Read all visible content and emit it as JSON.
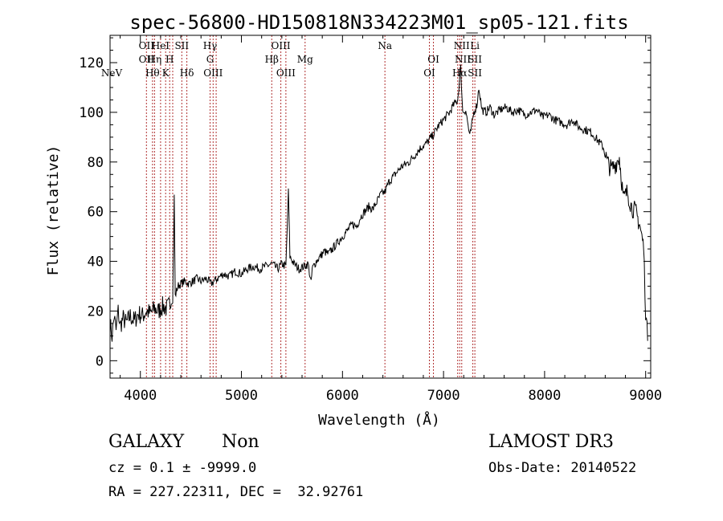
{
  "chart_data": {
    "type": "line",
    "title": "spec-56800-HD150818N334223M01_sp05-121.fits",
    "xlabel": "Wavelength (Å)",
    "ylabel": "Flux (relative)",
    "xlim": [
      3700,
      9050
    ],
    "ylim": [
      -7,
      131
    ],
    "x_ticks": [
      4000,
      5000,
      6000,
      7000,
      8000,
      9000
    ],
    "y_ticks": [
      0,
      20,
      40,
      60,
      80,
      100,
      120
    ],
    "grid": false,
    "legend": "none",
    "line_color": "#000000",
    "marker_color": "#b03030",
    "series": [
      {
        "points": [
          [
            3700,
            15
          ],
          [
            3720,
            10
          ],
          [
            3740,
            18
          ],
          [
            3760,
            12
          ],
          [
            3780,
            20
          ],
          [
            3800,
            14
          ],
          [
            3830,
            17
          ],
          [
            3860,
            15
          ],
          [
            3900,
            18
          ],
          [
            3940,
            16
          ],
          [
            3980,
            19
          ],
          [
            4020,
            18
          ],
          [
            4060,
            20
          ],
          [
            4100,
            19
          ],
          [
            4140,
            21
          ],
          [
            4180,
            20
          ],
          [
            4220,
            22
          ],
          [
            4260,
            21
          ],
          [
            4300,
            23
          ],
          [
            4320,
            25
          ],
          [
            4335,
            66
          ],
          [
            4345,
            26
          ],
          [
            4370,
            30
          ],
          [
            4400,
            31
          ],
          [
            4440,
            32
          ],
          [
            4480,
            31
          ],
          [
            4520,
            32
          ],
          [
            4560,
            33
          ],
          [
            4600,
            32
          ],
          [
            4650,
            33
          ],
          [
            4700,
            31
          ],
          [
            4760,
            33
          ],
          [
            4820,
            35
          ],
          [
            4880,
            34
          ],
          [
            4940,
            36
          ],
          [
            5000,
            35
          ],
          [
            5060,
            37
          ],
          [
            5120,
            38
          ],
          [
            5180,
            37
          ],
          [
            5240,
            38
          ],
          [
            5300,
            39
          ],
          [
            5360,
            37
          ],
          [
            5400,
            39
          ],
          [
            5440,
            38
          ],
          [
            5465,
            68
          ],
          [
            5480,
            42
          ],
          [
            5520,
            39
          ],
          [
            5570,
            37
          ],
          [
            5620,
            38
          ],
          [
            5660,
            39
          ],
          [
            5690,
            31
          ],
          [
            5700,
            37
          ],
          [
            5740,
            40
          ],
          [
            5780,
            42
          ],
          [
            5820,
            44
          ],
          [
            5860,
            43
          ],
          [
            5900,
            45
          ],
          [
            5940,
            47
          ],
          [
            5980,
            49
          ],
          [
            6020,
            51
          ],
          [
            6060,
            53
          ],
          [
            6100,
            55
          ],
          [
            6140,
            54
          ],
          [
            6180,
            58
          ],
          [
            6220,
            60
          ],
          [
            6260,
            62
          ],
          [
            6300,
            61
          ],
          [
            6340,
            64
          ],
          [
            6380,
            67
          ],
          [
            6420,
            68
          ],
          [
            6460,
            72
          ],
          [
            6500,
            74
          ],
          [
            6540,
            76
          ],
          [
            6580,
            78
          ],
          [
            6620,
            79
          ],
          [
            6660,
            80
          ],
          [
            6700,
            82
          ],
          [
            6740,
            84
          ],
          [
            6780,
            86
          ],
          [
            6820,
            87
          ],
          [
            6860,
            89
          ],
          [
            6900,
            91
          ],
          [
            6940,
            94
          ],
          [
            6980,
            96
          ],
          [
            7020,
            98
          ],
          [
            7060,
            100
          ],
          [
            7100,
            103
          ],
          [
            7140,
            105
          ],
          [
            7170,
            118
          ],
          [
            7190,
            100
          ],
          [
            7220,
            101
          ],
          [
            7260,
            90
          ],
          [
            7300,
            100
          ],
          [
            7330,
            103
          ],
          [
            7350,
            110
          ],
          [
            7380,
            101
          ],
          [
            7420,
            100
          ],
          [
            7460,
            102
          ],
          [
            7500,
            99
          ],
          [
            7560,
            101
          ],
          [
            7620,
            102
          ],
          [
            7680,
            100
          ],
          [
            7740,
            101
          ],
          [
            7800,
            99
          ],
          [
            7860,
            100
          ],
          [
            7920,
            101
          ],
          [
            7980,
            98
          ],
          [
            8040,
            99
          ],
          [
            8100,
            97
          ],
          [
            8160,
            96
          ],
          [
            8220,
            95
          ],
          [
            8280,
            97
          ],
          [
            8340,
            94
          ],
          [
            8400,
            93
          ],
          [
            8460,
            92
          ],
          [
            8520,
            89
          ],
          [
            8580,
            86
          ],
          [
            8620,
            80
          ],
          [
            8660,
            77
          ],
          [
            8700,
            79
          ],
          [
            8740,
            82
          ],
          [
            8780,
            65
          ],
          [
            8820,
            68
          ],
          [
            8860,
            62
          ],
          [
            8900,
            60
          ],
          [
            8940,
            55
          ],
          [
            8980,
            46
          ],
          [
            9000,
            20
          ],
          [
            9020,
            8
          ]
        ]
      }
    ],
    "line_markers": [
      {
        "label": "NeV",
        "wavelength": 3700,
        "row": 3
      },
      {
        "label": "OII",
        "wavelength": 4060,
        "row": 0
      },
      {
        "label": "OII",
        "wavelength": 4060,
        "row": 1
      },
      {
        "label": "Hθ",
        "wavelength": 4120,
        "row": 2
      },
      {
        "label": "Hη",
        "wavelength": 4140,
        "row": 1
      },
      {
        "label": "HeI",
        "wavelength": 4200,
        "row": 0
      },
      {
        "label": "K",
        "wavelength": 4250,
        "row": 2
      },
      {
        "label": "H",
        "wavelength": 4290,
        "row": 1
      },
      {
        "label": "SII",
        "wavelength": 4410,
        "row": 0
      },
      {
        "label": "Hδ",
        "wavelength": 4460,
        "row": 2
      },
      {
        "label": "Hγ",
        "wavelength": 4690,
        "row": 0
      },
      {
        "label": "G",
        "wavelength": 4690,
        "row": 1
      },
      {
        "label": "OIII",
        "wavelength": 4720,
        "row": 2
      },
      {
        "label": "Hβ",
        "wavelength": 5300,
        "row": 1
      },
      {
        "label": "OIII",
        "wavelength": 5390,
        "row": 0
      },
      {
        "label": "OIII",
        "wavelength": 5440,
        "row": 2
      },
      {
        "label": "Mg",
        "wavelength": 5630,
        "row": 1
      },
      {
        "label": "Na",
        "wavelength": 6420,
        "row": 0
      },
      {
        "label": "OI",
        "wavelength": 6900,
        "row": 1
      },
      {
        "label": "OI",
        "wavelength": 6860,
        "row": 2
      },
      {
        "label": "NII",
        "wavelength": 7180,
        "row": 0
      },
      {
        "label": "NII",
        "wavelength": 7190,
        "row": 1
      },
      {
        "label": "Hα",
        "wavelength": 7160,
        "row": 2
      },
      {
        "label": "Li",
        "wavelength": 7310,
        "row": 0
      },
      {
        "label": "SII",
        "wavelength": 7310,
        "row": 1
      },
      {
        "label": "SII",
        "wavelength": 7310,
        "row": 2
      }
    ],
    "marker_lines": [
      4060,
      4120,
      4140,
      4200,
      4250,
      4290,
      4320,
      4410,
      4460,
      4690,
      4720,
      4750,
      5300,
      5390,
      5440,
      5630,
      6420,
      6860,
      6900,
      7140,
      7160,
      7180,
      7290,
      7310
    ]
  },
  "info": {
    "object_class": "GALAXY",
    "subclass": "Non",
    "survey": "LAMOST DR3",
    "cz_line": "cz = 0.1 ± -9999.0",
    "obs_date": "Obs-Date: 20140522",
    "coords": "RA = 227.22311, DEC =  32.92761"
  }
}
